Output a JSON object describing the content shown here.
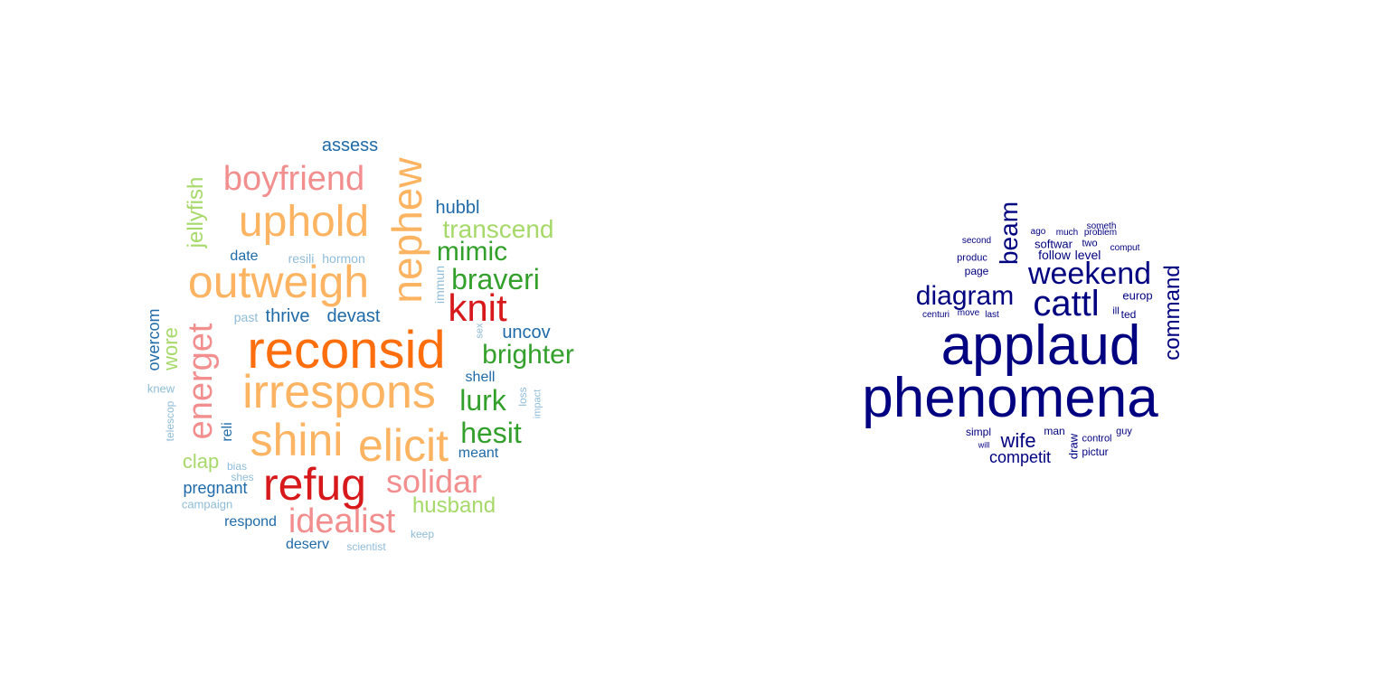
{
  "colors": {
    "reconsid": "#ff6e0d",
    "red": "#d7191c",
    "orange_light": "#fdb462",
    "pink": "#f28e8e",
    "green_dark": "#33a02c",
    "green_light": "#a6d96a",
    "blue_dark": "#1f6aa8",
    "blue_light": "#8fbcd8",
    "navy": "#000080"
  },
  "clouds": [
    {
      "id": "left",
      "words": [
        {
          "text": "reconsid",
          "color": "reconsid"
        },
        {
          "text": "irrespons",
          "color": "orange_light"
        },
        {
          "text": "outweigh",
          "color": "orange_light"
        },
        {
          "text": "uphold",
          "color": "orange_light"
        },
        {
          "text": "nephew",
          "color": "orange_light"
        },
        {
          "text": "shini",
          "color": "orange_light"
        },
        {
          "text": "elicit",
          "color": "orange_light"
        },
        {
          "text": "boyfriend",
          "color": "pink"
        },
        {
          "text": "energet",
          "color": "pink"
        },
        {
          "text": "solidar",
          "color": "pink"
        },
        {
          "text": "idealist",
          "color": "pink"
        },
        {
          "text": "refug",
          "color": "red"
        },
        {
          "text": "knit",
          "color": "red"
        },
        {
          "text": "braveri",
          "color": "green_dark"
        },
        {
          "text": "brighter",
          "color": "green_dark"
        },
        {
          "text": "mimic",
          "color": "green_dark"
        },
        {
          "text": "lurk",
          "color": "green_dark"
        },
        {
          "text": "hesit",
          "color": "green_dark"
        },
        {
          "text": "transcend",
          "color": "green_light"
        },
        {
          "text": "jellyfish",
          "color": "green_light"
        },
        {
          "text": "wore",
          "color": "green_light"
        },
        {
          "text": "husband",
          "color": "green_light"
        },
        {
          "text": "clap",
          "color": "green_light"
        },
        {
          "text": "assess",
          "color": "blue_dark"
        },
        {
          "text": "hubbl",
          "color": "blue_dark"
        },
        {
          "text": "uncov",
          "color": "blue_dark"
        },
        {
          "text": "thrive",
          "color": "blue_dark"
        },
        {
          "text": "devast",
          "color": "blue_dark"
        },
        {
          "text": "overcom",
          "color": "blue_dark"
        },
        {
          "text": "pregnant",
          "color": "blue_dark"
        },
        {
          "text": "respond",
          "color": "blue_dark"
        },
        {
          "text": "deserv",
          "color": "blue_dark"
        },
        {
          "text": "meant",
          "color": "blue_dark"
        },
        {
          "text": "shell",
          "color": "blue_dark"
        },
        {
          "text": "date",
          "color": "blue_dark"
        },
        {
          "text": "reli",
          "color": "blue_dark"
        },
        {
          "text": "resili",
          "color": "blue_light"
        },
        {
          "text": "hormon",
          "color": "blue_light"
        },
        {
          "text": "past",
          "color": "blue_light"
        },
        {
          "text": "immun",
          "color": "blue_light"
        },
        {
          "text": "sex",
          "color": "blue_light"
        },
        {
          "text": "loss",
          "color": "blue_light"
        },
        {
          "text": "impact",
          "color": "blue_light"
        },
        {
          "text": "knew",
          "color": "blue_light"
        },
        {
          "text": "telescop",
          "color": "blue_light"
        },
        {
          "text": "bias",
          "color": "blue_light"
        },
        {
          "text": "shes",
          "color": "blue_light"
        },
        {
          "text": "campaign",
          "color": "blue_light"
        },
        {
          "text": "keep",
          "color": "blue_light"
        },
        {
          "text": "scientist",
          "color": "blue_light"
        }
      ]
    },
    {
      "id": "right",
      "words": [
        {
          "text": "applaud",
          "color": "navy"
        },
        {
          "text": "phenomena",
          "color": "navy"
        },
        {
          "text": "cattl",
          "color": "navy"
        },
        {
          "text": "weekend",
          "color": "navy"
        },
        {
          "text": "diagram",
          "color": "navy"
        },
        {
          "text": "beam",
          "color": "navy"
        },
        {
          "text": "command",
          "color": "navy"
        },
        {
          "text": "wife",
          "color": "navy"
        },
        {
          "text": "competit",
          "color": "navy"
        },
        {
          "text": "europ",
          "color": "navy"
        },
        {
          "text": "follow",
          "color": "navy"
        },
        {
          "text": "level",
          "color": "navy"
        },
        {
          "text": "softwar",
          "color": "navy"
        },
        {
          "text": "two",
          "color": "navy"
        },
        {
          "text": "page",
          "color": "navy"
        },
        {
          "text": "produc",
          "color": "navy"
        },
        {
          "text": "second",
          "color": "navy"
        },
        {
          "text": "ago",
          "color": "navy"
        },
        {
          "text": "much",
          "color": "navy"
        },
        {
          "text": "problem",
          "color": "navy"
        },
        {
          "text": "someth",
          "color": "navy"
        },
        {
          "text": "comput",
          "color": "navy"
        },
        {
          "text": "centuri",
          "color": "navy"
        },
        {
          "text": "move",
          "color": "navy"
        },
        {
          "text": "last",
          "color": "navy"
        },
        {
          "text": "ill",
          "color": "navy"
        },
        {
          "text": "ted",
          "color": "navy"
        },
        {
          "text": "simpl",
          "color": "navy"
        },
        {
          "text": "will",
          "color": "navy"
        },
        {
          "text": "man",
          "color": "navy"
        },
        {
          "text": "draw",
          "color": "navy"
        },
        {
          "text": "control",
          "color": "navy"
        },
        {
          "text": "guy",
          "color": "navy"
        },
        {
          "text": "pictur",
          "color": "navy"
        }
      ]
    }
  ]
}
